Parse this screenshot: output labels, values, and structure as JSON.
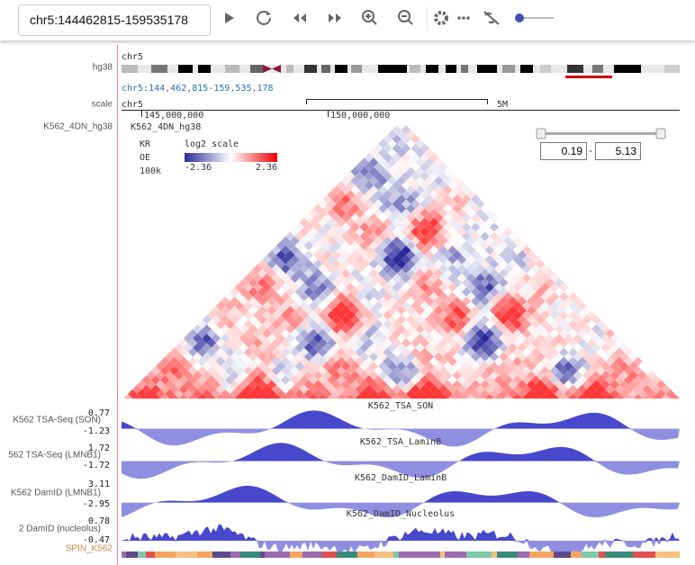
{
  "toolbar": {
    "location": "chr5:144462815-159535178"
  },
  "left_labels": {
    "genome": "hg38",
    "scale": "scale",
    "heatmap": "K562_4DN_hg38"
  },
  "ideogram": {
    "chrom": "chr5",
    "range": "chr5:144,462,815-159,535,178"
  },
  "scale": {
    "chrom": "chr5",
    "bar": "5M",
    "ticks": [
      "145,000,000",
      "150,000,000"
    ]
  },
  "heatmap": {
    "name": "K562_4DN_hg38",
    "norm": "KR",
    "mode": "OE",
    "resolution": "100k",
    "legend_title": "log2 scale",
    "legend_min": -2.36,
    "legend_max": 2.36,
    "range_min": 0.19,
    "range_sep": "-",
    "range_max": 5.13
  },
  "tracks": [
    {
      "label": "K562 TSA-Seq (SON)",
      "title": "K562_TSA_SON",
      "max": 0.77,
      "min": -1.23
    },
    {
      "label": "562 TSA-Seq (LMNB1)",
      "title": "K562_TSA_LaminB",
      "max": 1.72,
      "min": -1.72
    },
    {
      "label": "K562 DamID (LMNB1)",
      "title": "K562_DamID_LaminB",
      "max": 3.11,
      "min": -2.95
    },
    {
      "label": "2 DamID (nucleolus)",
      "title": "K562_DamID_Nucleolus",
      "max": 0.78,
      "min": -0.47
    }
  ],
  "spin": {
    "label": "SPIN_K562"
  }
}
